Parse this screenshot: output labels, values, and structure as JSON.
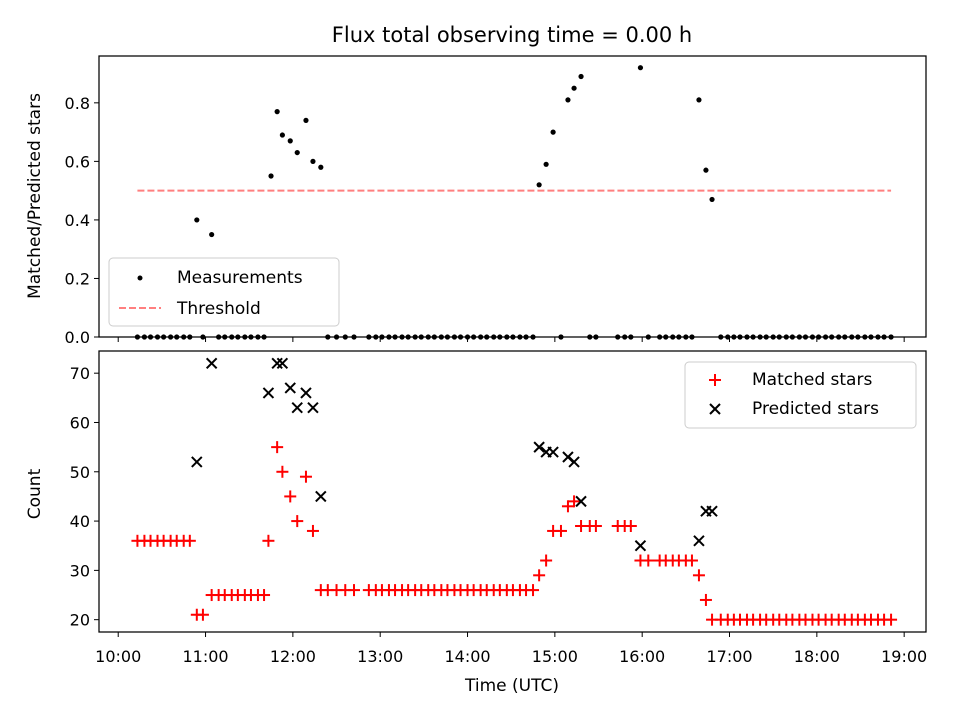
{
  "figure": {
    "title": "Flux total observing time = 0.00 h"
  },
  "chart_data": [
    {
      "type": "scatter",
      "title": "Flux total observing time = 0.00 h",
      "xlabel": "",
      "ylabel": "Matched/Predicted stars",
      "xlim": [
        9.78,
        19.25
      ],
      "ylim": [
        0.0,
        0.96
      ],
      "yticks": [
        0.0,
        0.2,
        0.4,
        0.6,
        0.8
      ],
      "ytick_labels": [
        "0.0",
        "0.2",
        "0.4",
        "0.6",
        "0.8"
      ],
      "legend_position": "lower-left",
      "series": [
        {
          "name": "Measurements",
          "kind": "scatter",
          "marker": "dot",
          "color": "#000000",
          "x": [
            10.22,
            10.3,
            10.37,
            10.45,
            10.52,
            10.6,
            10.67,
            10.75,
            10.82,
            10.9,
            10.97,
            11.07,
            11.15,
            11.22,
            11.3,
            11.37,
            11.45,
            11.52,
            11.6,
            11.67,
            11.75,
            11.82,
            11.88,
            11.97,
            12.05,
            12.15,
            12.23,
            12.32,
            12.4,
            12.5,
            12.6,
            12.7,
            12.87,
            12.95,
            13.02,
            13.1,
            13.17,
            13.25,
            13.32,
            13.4,
            13.47,
            13.55,
            13.62,
            13.7,
            13.77,
            13.85,
            13.92,
            14.0,
            14.07,
            14.15,
            14.22,
            14.3,
            14.37,
            14.45,
            14.52,
            14.6,
            14.67,
            14.75,
            14.82,
            14.9,
            14.98,
            15.07,
            15.15,
            15.22,
            15.3,
            15.4,
            15.47,
            15.72,
            15.8,
            15.87,
            15.98,
            16.07,
            16.2,
            16.27,
            16.35,
            16.42,
            16.5,
            16.57,
            16.65,
            16.73,
            16.8,
            16.9,
            16.98,
            17.05,
            17.12,
            17.2,
            17.27,
            17.35,
            17.42,
            17.5,
            17.57,
            17.65,
            17.72,
            17.8,
            17.87,
            17.95,
            18.02,
            18.1,
            18.17,
            18.25,
            18.32,
            18.4,
            18.47,
            18.55,
            18.62,
            18.7,
            18.77,
            18.85
          ],
          "y": [
            0,
            0,
            0,
            0,
            0,
            0,
            0,
            0,
            0,
            0.4,
            0,
            0.35,
            0,
            0,
            0,
            0,
            0,
            0,
            0,
            0,
            0.55,
            0.77,
            0.69,
            0.67,
            0.63,
            0.74,
            0.6,
            0.58,
            0,
            0,
            0,
            0,
            0,
            0,
            0,
            0,
            0,
            0,
            0,
            0,
            0,
            0,
            0,
            0,
            0,
            0,
            0,
            0,
            0,
            0,
            0,
            0,
            0,
            0,
            0,
            0,
            0,
            0,
            0.52,
            0.59,
            0.7,
            0,
            0.81,
            0.85,
            0.89,
            0,
            0,
            0,
            0,
            0,
            0.92,
            0,
            0,
            0,
            0,
            0,
            0,
            0,
            0.81,
            0.57,
            0.47,
            0,
            0,
            0,
            0,
            0,
            0,
            0,
            0,
            0,
            0,
            0,
            0,
            0,
            0,
            0,
            0,
            0,
            0,
            0,
            0,
            0,
            0,
            0,
            0,
            0,
            0,
            0
          ]
        },
        {
          "name": "Threshold",
          "kind": "line",
          "style": "dashed",
          "color": "#ff7f7f",
          "x": [
            10.22,
            18.85
          ],
          "y": [
            0.5,
            0.5
          ]
        }
      ]
    },
    {
      "type": "scatter",
      "title": "",
      "xlabel": "Time (UTC)",
      "ylabel": "Count",
      "xlim": [
        9.78,
        19.25
      ],
      "ylim": [
        17.5,
        74.5
      ],
      "yticks": [
        20,
        30,
        40,
        50,
        60,
        70
      ],
      "ytick_labels": [
        "20",
        "30",
        "40",
        "50",
        "60",
        "70"
      ],
      "xticks": [
        10,
        11,
        12,
        13,
        14,
        15,
        16,
        17,
        18,
        19
      ],
      "xtick_labels": [
        "10:00",
        "11:00",
        "12:00",
        "13:00",
        "14:00",
        "15:00",
        "16:00",
        "17:00",
        "18:00",
        "19:00"
      ],
      "legend_position": "upper-right",
      "series": [
        {
          "name": "Matched stars",
          "kind": "scatter",
          "marker": "plus",
          "color": "#ff0000",
          "x": [
            10.22,
            10.3,
            10.37,
            10.45,
            10.52,
            10.6,
            10.67,
            10.75,
            10.82,
            10.9,
            10.97,
            11.07,
            11.15,
            11.22,
            11.3,
            11.37,
            11.45,
            11.52,
            11.6,
            11.67,
            11.72,
            11.82,
            11.88,
            11.97,
            12.05,
            12.15,
            12.23,
            12.32,
            12.4,
            12.5,
            12.6,
            12.7,
            12.87,
            12.95,
            13.02,
            13.1,
            13.17,
            13.25,
            13.32,
            13.4,
            13.47,
            13.55,
            13.62,
            13.7,
            13.77,
            13.85,
            13.92,
            14.0,
            14.07,
            14.15,
            14.22,
            14.3,
            14.37,
            14.45,
            14.52,
            14.6,
            14.67,
            14.75,
            14.82,
            14.9,
            14.98,
            15.07,
            15.15,
            15.22,
            15.3,
            15.4,
            15.47,
            15.72,
            15.8,
            15.87,
            15.98,
            16.07,
            16.2,
            16.27,
            16.35,
            16.42,
            16.5,
            16.57,
            16.65,
            16.73,
            16.8,
            16.9,
            16.98,
            17.05,
            17.12,
            17.2,
            17.27,
            17.35,
            17.42,
            17.5,
            17.57,
            17.65,
            17.72,
            17.8,
            17.87,
            17.95,
            18.02,
            18.1,
            18.17,
            18.25,
            18.32,
            18.4,
            18.47,
            18.55,
            18.62,
            18.7,
            18.77,
            18.85
          ],
          "y": [
            36,
            36,
            36,
            36,
            36,
            36,
            36,
            36,
            36,
            21,
            21,
            25,
            25,
            25,
            25,
            25,
            25,
            25,
            25,
            25,
            36,
            55,
            50,
            45,
            40,
            49,
            38,
            26,
            26,
            26,
            26,
            26,
            26,
            26,
            26,
            26,
            26,
            26,
            26,
            26,
            26,
            26,
            26,
            26,
            26,
            26,
            26,
            26,
            26,
            26,
            26,
            26,
            26,
            26,
            26,
            26,
            26,
            26,
            29,
            32,
            38,
            38,
            43,
            44,
            39,
            39,
            39,
            39,
            39,
            39,
            32,
            32,
            32,
            32,
            32,
            32,
            32,
            32,
            29,
            24,
            20,
            20,
            20,
            20,
            20,
            20,
            20,
            20,
            20,
            20,
            20,
            20,
            20,
            20,
            20,
            20,
            20,
            20,
            20,
            20,
            20,
            20,
            20,
            20,
            20,
            20,
            20,
            20
          ]
        },
        {
          "name": "Predicted stars",
          "kind": "scatter",
          "marker": "x",
          "color": "#000000",
          "x": [
            10.9,
            11.07,
            11.72,
            11.82,
            11.88,
            11.97,
            12.05,
            12.15,
            12.23,
            12.32,
            14.82,
            14.9,
            14.98,
            15.15,
            15.22,
            15.3,
            15.98,
            16.65,
            16.73,
            16.8
          ],
          "y": [
            52,
            72,
            66,
            72,
            72,
            67,
            63,
            66,
            63,
            45,
            55,
            54,
            54,
            53,
            52,
            44,
            35,
            36,
            42,
            42
          ]
        }
      ]
    }
  ]
}
